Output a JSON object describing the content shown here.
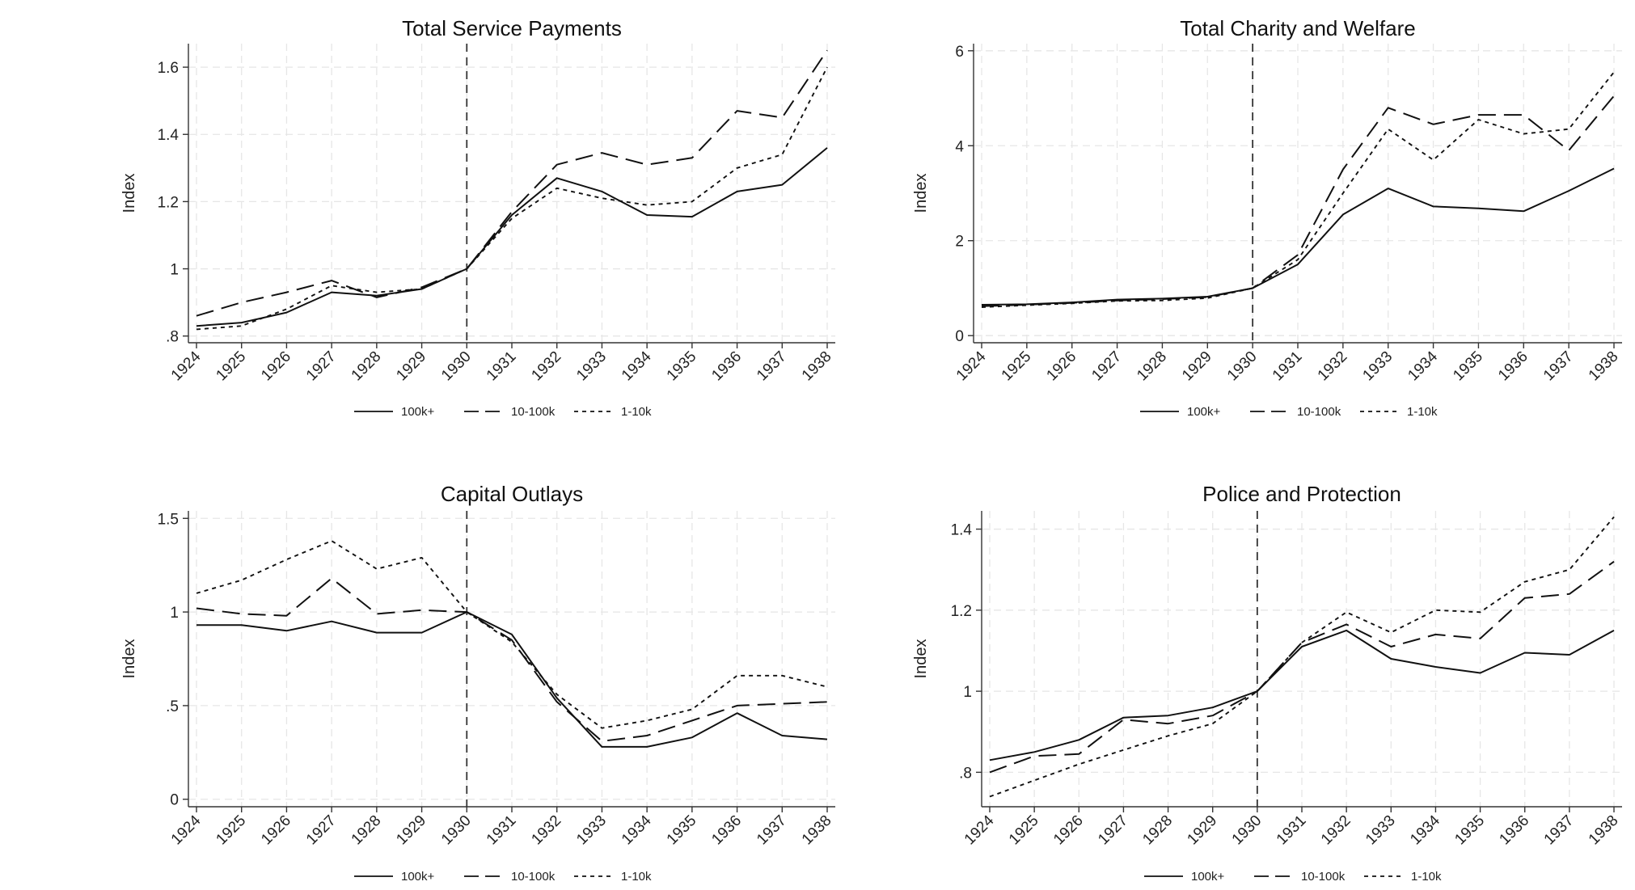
{
  "legend_labels": [
    "100k+",
    "10-100k",
    "1-10k"
  ],
  "chart_data": [
    {
      "type": "line",
      "title": "Total Service Payments",
      "ylabel": "Index",
      "x": [
        1924,
        1925,
        1926,
        1927,
        1928,
        1929,
        1930,
        1931,
        1932,
        1933,
        1934,
        1935,
        1936,
        1937,
        1938
      ],
      "ylim": [
        0.78,
        1.67
      ],
      "yticks": [
        0.8,
        1.0,
        1.2,
        1.4,
        1.6
      ],
      "ytick_labels": [
        ".8",
        "1",
        "1.2",
        "1.4",
        "1.6"
      ],
      "vline": 1930,
      "series": [
        {
          "name": "100k+",
          "style": "solid",
          "values": [
            0.83,
            0.84,
            0.87,
            0.93,
            0.92,
            0.94,
            1.0,
            1.16,
            1.27,
            1.23,
            1.16,
            1.155,
            1.23,
            1.25,
            1.36
          ]
        },
        {
          "name": "10-100k",
          "style": "dashed",
          "values": [
            0.86,
            0.9,
            0.93,
            0.965,
            0.915,
            0.945,
            1.0,
            1.17,
            1.31,
            1.345,
            1.31,
            1.33,
            1.47,
            1.45,
            1.65
          ]
        },
        {
          "name": "1-10k",
          "style": "dotted",
          "values": [
            0.82,
            0.83,
            0.88,
            0.95,
            0.93,
            0.94,
            1.0,
            1.15,
            1.24,
            1.21,
            1.19,
            1.2,
            1.3,
            1.34,
            1.6
          ]
        }
      ]
    },
    {
      "type": "line",
      "title": "Total Charity and Welfare",
      "ylabel": "Index",
      "x": [
        1924,
        1925,
        1926,
        1927,
        1928,
        1929,
        1930,
        1931,
        1932,
        1933,
        1934,
        1935,
        1936,
        1937,
        1938
      ],
      "ylim": [
        -0.15,
        6.15
      ],
      "yticks": [
        0,
        2,
        4,
        6
      ],
      "ytick_labels": [
        "0",
        "2",
        "4",
        "6"
      ],
      "vline": 1930,
      "series": [
        {
          "name": "100k+",
          "style": "solid",
          "values": [
            0.65,
            0.66,
            0.7,
            0.76,
            0.78,
            0.82,
            1.0,
            1.5,
            2.55,
            3.1,
            2.72,
            2.68,
            2.62,
            3.05,
            3.52
          ]
        },
        {
          "name": "10-100k",
          "style": "dashed",
          "values": [
            0.62,
            0.65,
            0.69,
            0.74,
            0.77,
            0.81,
            1.0,
            1.7,
            3.5,
            4.8,
            4.45,
            4.65,
            4.65,
            3.9,
            5.05
          ]
        },
        {
          "name": "1-10k",
          "style": "dotted",
          "values": [
            0.6,
            0.64,
            0.68,
            0.73,
            0.74,
            0.79,
            1.0,
            1.6,
            3.0,
            4.35,
            3.7,
            4.55,
            4.25,
            4.35,
            5.55
          ]
        }
      ]
    },
    {
      "type": "line",
      "title": "Capital Outlays",
      "ylabel": "Index",
      "x": [
        1924,
        1925,
        1926,
        1927,
        1928,
        1929,
        1930,
        1931,
        1932,
        1933,
        1934,
        1935,
        1936,
        1937,
        1938
      ],
      "ylim": [
        -0.04,
        1.54
      ],
      "yticks": [
        0,
        0.5,
        1.0,
        1.5
      ],
      "ytick_labels": [
        "0",
        ".5",
        "1",
        "1.5"
      ],
      "vline": 1930,
      "series": [
        {
          "name": "100k+",
          "style": "solid",
          "values": [
            0.93,
            0.93,
            0.9,
            0.95,
            0.89,
            0.89,
            1.0,
            0.88,
            0.54,
            0.28,
            0.28,
            0.33,
            0.46,
            0.34,
            0.32
          ]
        },
        {
          "name": "10-100k",
          "style": "dashed",
          "values": [
            1.02,
            0.99,
            0.98,
            1.18,
            0.99,
            1.01,
            1.0,
            0.85,
            0.52,
            0.31,
            0.34,
            0.42,
            0.5,
            0.51,
            0.52
          ]
        },
        {
          "name": "1-10k",
          "style": "dotted",
          "values": [
            1.1,
            1.17,
            1.28,
            1.38,
            1.23,
            1.29,
            1.0,
            0.84,
            0.56,
            0.38,
            0.42,
            0.48,
            0.66,
            0.66,
            0.6
          ]
        }
      ]
    },
    {
      "type": "line",
      "title": "Police and Protection",
      "ylabel": "Index",
      "x": [
        1924,
        1925,
        1926,
        1927,
        1928,
        1929,
        1930,
        1931,
        1932,
        1933,
        1934,
        1935,
        1936,
        1937,
        1938
      ],
      "ylim": [
        0.715,
        1.445
      ],
      "yticks": [
        0.8,
        1.0,
        1.2,
        1.4
      ],
      "ytick_labels": [
        ".8",
        "1",
        "1.2",
        "1.4"
      ],
      "vline": 1930,
      "series": [
        {
          "name": "100k+",
          "style": "solid",
          "values": [
            0.83,
            0.85,
            0.88,
            0.935,
            0.94,
            0.96,
            1.0,
            1.11,
            1.15,
            1.08,
            1.06,
            1.045,
            1.095,
            1.09,
            1.15
          ]
        },
        {
          "name": "10-100k",
          "style": "dashed",
          "values": [
            0.8,
            0.84,
            0.845,
            0.93,
            0.92,
            0.94,
            1.0,
            1.12,
            1.165,
            1.11,
            1.14,
            1.13,
            1.23,
            1.24,
            1.32
          ]
        },
        {
          "name": "1-10k",
          "style": "dotted",
          "values": [
            0.74,
            0.78,
            0.82,
            0.855,
            0.89,
            0.92,
            1.0,
            1.12,
            1.195,
            1.145,
            1.2,
            1.195,
            1.27,
            1.3,
            1.43
          ]
        }
      ]
    }
  ]
}
